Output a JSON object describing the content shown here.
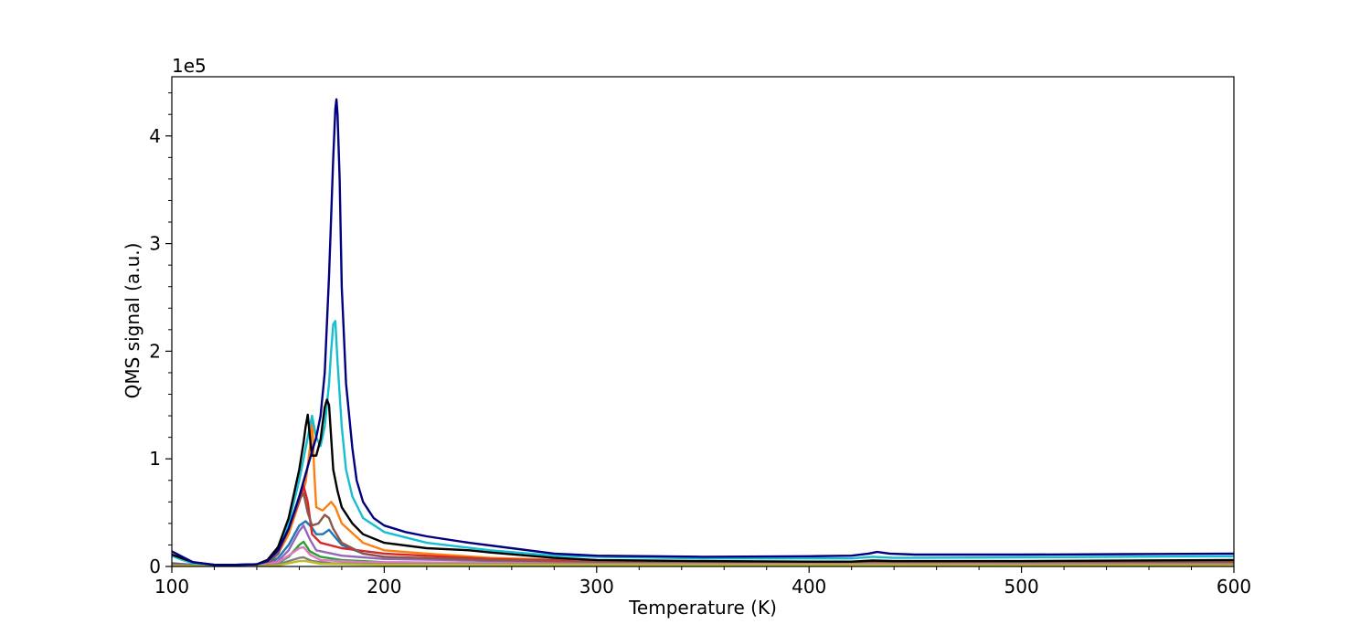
{
  "chart_data": {
    "type": "line",
    "title": "",
    "xlabel": "Temperature (K)",
    "ylabel": "QMS signal (a.u.)",
    "y_offset_text": "1e5",
    "xlim": [
      100,
      600
    ],
    "ylim": [
      0,
      455000
    ],
    "x_ticks": [
      100,
      200,
      300,
      400,
      500,
      600
    ],
    "x_tick_labels": [
      "100",
      "200",
      "300",
      "400",
      "500",
      "600"
    ],
    "y_ticks": [
      0,
      100000,
      200000,
      300000,
      400000
    ],
    "y_tick_labels": [
      "0",
      "1",
      "2",
      "3",
      "4"
    ],
    "grid": false,
    "legend": "none",
    "series": [
      {
        "color": "#1f77b4",
        "points": [
          [
            100,
            3000
          ],
          [
            110,
            1500
          ],
          [
            120,
            600
          ],
          [
            130,
            500
          ],
          [
            140,
            800
          ],
          [
            146,
            3000
          ],
          [
            150,
            8000
          ],
          [
            155,
            20000
          ],
          [
            160,
            38000
          ],
          [
            163,
            42000
          ],
          [
            166,
            36000
          ],
          [
            168,
            30000
          ],
          [
            171,
            30000
          ],
          [
            174,
            34000
          ],
          [
            177,
            27000
          ],
          [
            180,
            20000
          ],
          [
            190,
            12000
          ],
          [
            200,
            9000
          ],
          [
            220,
            7000
          ],
          [
            250,
            5000
          ],
          [
            300,
            4000
          ],
          [
            400,
            3500
          ],
          [
            430,
            4500
          ],
          [
            450,
            4000
          ],
          [
            500,
            4000
          ],
          [
            600,
            4500
          ]
        ]
      },
      {
        "color": "#ff7f0e",
        "points": [
          [
            100,
            2000
          ],
          [
            110,
            1200
          ],
          [
            120,
            600
          ],
          [
            130,
            500
          ],
          [
            140,
            1000
          ],
          [
            146,
            4000
          ],
          [
            150,
            12000
          ],
          [
            155,
            30000
          ],
          [
            160,
            60000
          ],
          [
            163,
            78000
          ],
          [
            165,
            110000
          ],
          [
            166,
            140000
          ],
          [
            167,
            90000
          ],
          [
            168,
            55000
          ],
          [
            171,
            52000
          ],
          [
            174,
            58000
          ],
          [
            175,
            60000
          ],
          [
            177,
            55000
          ],
          [
            180,
            40000
          ],
          [
            190,
            22000
          ],
          [
            200,
            15000
          ],
          [
            220,
            12000
          ],
          [
            250,
            8000
          ],
          [
            300,
            5000
          ],
          [
            400,
            4000
          ],
          [
            500,
            4000
          ],
          [
            600,
            4500
          ]
        ]
      },
      {
        "color": "#2ca02c",
        "points": [
          [
            100,
            1500
          ],
          [
            120,
            500
          ],
          [
            140,
            600
          ],
          [
            150,
            3000
          ],
          [
            155,
            9000
          ],
          [
            160,
            20000
          ],
          [
            162,
            23000
          ],
          [
            165,
            14000
          ],
          [
            170,
            9000
          ],
          [
            180,
            6000
          ],
          [
            200,
            4000
          ],
          [
            300,
            2500
          ],
          [
            400,
            2000
          ],
          [
            500,
            2000
          ],
          [
            600,
            2000
          ]
        ]
      },
      {
        "color": "#d62728",
        "points": [
          [
            100,
            2000
          ],
          [
            110,
            1000
          ],
          [
            120,
            500
          ],
          [
            140,
            900
          ],
          [
            146,
            4000
          ],
          [
            150,
            12000
          ],
          [
            155,
            35000
          ],
          [
            160,
            60000
          ],
          [
            162,
            75000
          ],
          [
            164,
            60000
          ],
          [
            166,
            30000
          ],
          [
            170,
            22000
          ],
          [
            180,
            17000
          ],
          [
            200,
            12000
          ],
          [
            250,
            7000
          ],
          [
            300,
            5000
          ],
          [
            400,
            4000
          ],
          [
            500,
            4000
          ],
          [
            600,
            4500
          ]
        ]
      },
      {
        "color": "#9467bd",
        "points": [
          [
            100,
            1500
          ],
          [
            120,
            500
          ],
          [
            140,
            600
          ],
          [
            150,
            5000
          ],
          [
            155,
            15000
          ],
          [
            160,
            33000
          ],
          [
            162,
            38000
          ],
          [
            165,
            25000
          ],
          [
            168,
            15000
          ],
          [
            180,
            10000
          ],
          [
            200,
            7000
          ],
          [
            300,
            4000
          ],
          [
            400,
            3500
          ],
          [
            500,
            3500
          ],
          [
            600,
            4000
          ]
        ]
      },
      {
        "color": "#8c564b",
        "points": [
          [
            100,
            2000
          ],
          [
            120,
            600
          ],
          [
            140,
            900
          ],
          [
            146,
            4000
          ],
          [
            150,
            12000
          ],
          [
            155,
            35000
          ],
          [
            160,
            62000
          ],
          [
            162,
            68000
          ],
          [
            164,
            50000
          ],
          [
            166,
            38000
          ],
          [
            169,
            40000
          ],
          [
            172,
            48000
          ],
          [
            174,
            45000
          ],
          [
            176,
            35000
          ],
          [
            180,
            22000
          ],
          [
            190,
            12000
          ],
          [
            200,
            9000
          ],
          [
            250,
            6000
          ],
          [
            300,
            4000
          ],
          [
            400,
            3500
          ],
          [
            500,
            3500
          ],
          [
            600,
            4000
          ]
        ]
      },
      {
        "color": "#e377c2",
        "points": [
          [
            100,
            1000
          ],
          [
            120,
            400
          ],
          [
            140,
            500
          ],
          [
            150,
            4000
          ],
          [
            155,
            10000
          ],
          [
            160,
            17000
          ],
          [
            162,
            18000
          ],
          [
            165,
            11000
          ],
          [
            170,
            6000
          ],
          [
            190,
            4000
          ],
          [
            300,
            2500
          ],
          [
            600,
            2000
          ]
        ]
      },
      {
        "color": "#7f7f7f",
        "points": [
          [
            100,
            800
          ],
          [
            120,
            300
          ],
          [
            140,
            400
          ],
          [
            150,
            2000
          ],
          [
            155,
            5000
          ],
          [
            160,
            8000
          ],
          [
            162,
            8500
          ],
          [
            166,
            5000
          ],
          [
            175,
            3000
          ],
          [
            200,
            2000
          ],
          [
            600,
            1500
          ]
        ]
      },
      {
        "color": "#bcbd22",
        "points": [
          [
            100,
            600
          ],
          [
            120,
            300
          ],
          [
            140,
            300
          ],
          [
            150,
            1000
          ],
          [
            155,
            3000
          ],
          [
            160,
            5000
          ],
          [
            163,
            5000
          ],
          [
            170,
            2500
          ],
          [
            200,
            1500
          ],
          [
            600,
            1000
          ]
        ]
      },
      {
        "color": "#17becf",
        "points": [
          [
            100,
            10000
          ],
          [
            105,
            6000
          ],
          [
            110,
            3000
          ],
          [
            120,
            1500
          ],
          [
            130,
            1500
          ],
          [
            140,
            2000
          ],
          [
            145,
            5000
          ],
          [
            150,
            15000
          ],
          [
            155,
            40000
          ],
          [
            160,
            80000
          ],
          [
            162,
            100000
          ],
          [
            164,
            120000
          ],
          [
            166,
            140000
          ],
          [
            168,
            120000
          ],
          [
            170,
            112000
          ],
          [
            172,
            130000
          ],
          [
            174,
            170000
          ],
          [
            175,
            200000
          ],
          [
            176,
            225000
          ],
          [
            177,
            228000
          ],
          [
            178,
            190000
          ],
          [
            180,
            130000
          ],
          [
            182,
            90000
          ],
          [
            185,
            65000
          ],
          [
            190,
            45000
          ],
          [
            200,
            32000
          ],
          [
            220,
            22000
          ],
          [
            250,
            15000
          ],
          [
            280,
            10000
          ],
          [
            300,
            9000
          ],
          [
            350,
            7500
          ],
          [
            400,
            7500
          ],
          [
            420,
            7500
          ],
          [
            430,
            9000
          ],
          [
            440,
            8000
          ],
          [
            500,
            8500
          ],
          [
            600,
            9500
          ]
        ]
      },
      {
        "color": "#000000",
        "points": [
          [
            100,
            11000
          ],
          [
            110,
            4000
          ],
          [
            120,
            1500
          ],
          [
            130,
            1500
          ],
          [
            140,
            2000
          ],
          [
            145,
            6000
          ],
          [
            150,
            18000
          ],
          [
            155,
            45000
          ],
          [
            160,
            90000
          ],
          [
            162,
            115000
          ],
          [
            163,
            130000
          ],
          [
            164,
            141000
          ],
          [
            165,
            120000
          ],
          [
            166,
            103000
          ],
          [
            168,
            103000
          ],
          [
            170,
            118000
          ],
          [
            172,
            148000
          ],
          [
            173,
            155000
          ],
          [
            174,
            150000
          ],
          [
            175,
            120000
          ],
          [
            176,
            90000
          ],
          [
            178,
            70000
          ],
          [
            180,
            55000
          ],
          [
            185,
            40000
          ],
          [
            190,
            30000
          ],
          [
            200,
            22000
          ],
          [
            220,
            17000
          ],
          [
            240,
            15000
          ],
          [
            250,
            13000
          ],
          [
            280,
            8000
          ],
          [
            300,
            6000
          ],
          [
            350,
            5000
          ],
          [
            400,
            4500
          ],
          [
            420,
            4500
          ],
          [
            430,
            5500
          ],
          [
            440,
            5000
          ],
          [
            500,
            5000
          ],
          [
            600,
            6000
          ]
        ]
      },
      {
        "color": "#000080",
        "points": [
          [
            100,
            14000
          ],
          [
            105,
            9000
          ],
          [
            110,
            4000
          ],
          [
            120,
            1500
          ],
          [
            130,
            1500
          ],
          [
            140,
            2000
          ],
          [
            145,
            5000
          ],
          [
            150,
            15000
          ],
          [
            155,
            35000
          ],
          [
            160,
            65000
          ],
          [
            165,
            100000
          ],
          [
            168,
            120000
          ],
          [
            170,
            140000
          ],
          [
            172,
            180000
          ],
          [
            174,
            270000
          ],
          [
            176,
            380000
          ],
          [
            177,
            425000
          ],
          [
            177.5,
            434000
          ],
          [
            178,
            420000
          ],
          [
            179,
            360000
          ],
          [
            180,
            260000
          ],
          [
            182,
            170000
          ],
          [
            185,
            110000
          ],
          [
            187,
            80000
          ],
          [
            190,
            60000
          ],
          [
            195,
            45000
          ],
          [
            200,
            38000
          ],
          [
            210,
            32000
          ],
          [
            220,
            28000
          ],
          [
            240,
            22000
          ],
          [
            260,
            17000
          ],
          [
            280,
            12000
          ],
          [
            300,
            10000
          ],
          [
            350,
            9000
          ],
          [
            400,
            9500
          ],
          [
            420,
            10000
          ],
          [
            428,
            12000
          ],
          [
            432,
            13500
          ],
          [
            438,
            12000
          ],
          [
            450,
            11000
          ],
          [
            500,
            11000
          ],
          [
            550,
            11500
          ],
          [
            600,
            12000
          ]
        ]
      }
    ]
  }
}
